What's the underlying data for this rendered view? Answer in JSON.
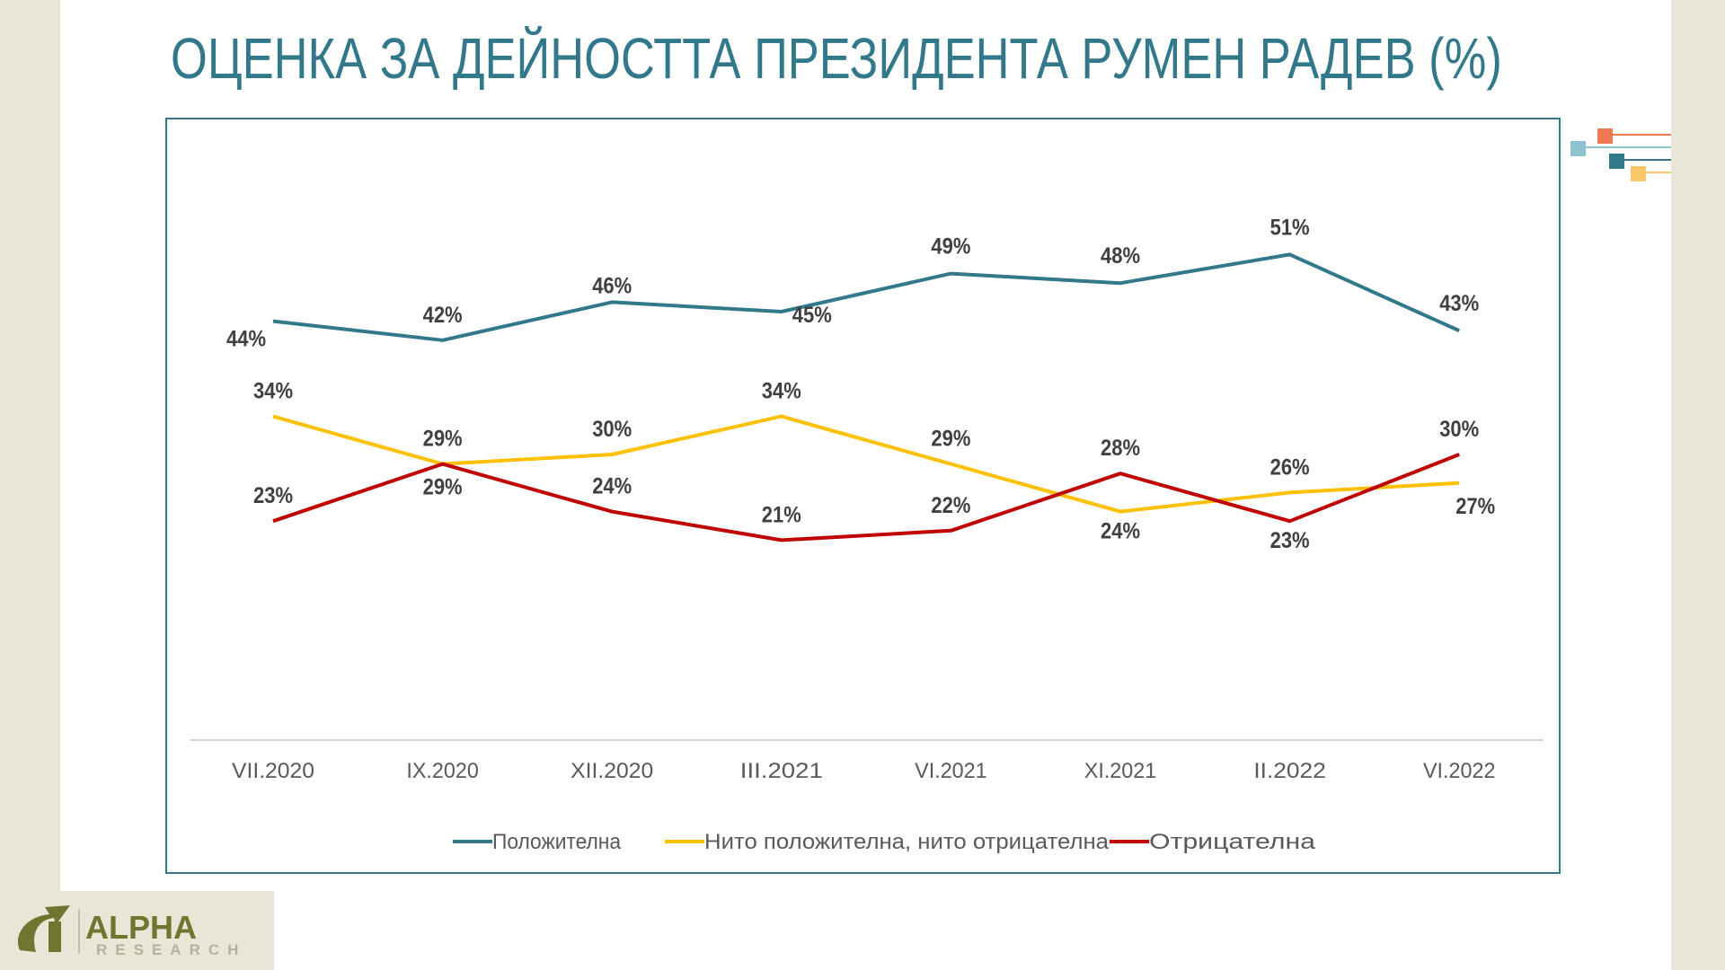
{
  "title": "ОЦЕНКА ЗА ДЕЙНОСТТА ПРЕЗИДЕНТА РУМЕН РАДЕВ (%)",
  "logo": {
    "name": "ALPHA",
    "sub": "RESEARCH"
  },
  "decor_colors": [
    "#F07855",
    "#8CC3CE",
    "#31788A",
    "#F7C76A"
  ],
  "chart_data": {
    "type": "line",
    "title": "ОЦЕНКА ЗА ДЕЙНОСТТА ПРЕЗИДЕНТА РУМЕН РАДЕВ (%)",
    "categories": [
      "VII.2020",
      "IX.2020",
      "XII.2020",
      "III.2021",
      "VI.2021",
      "XI.2021",
      "II.2022",
      "VI.2022"
    ],
    "ylim": [
      0,
      60
    ],
    "grid": false,
    "legend": "bottom",
    "series": [
      {
        "name": "Положителна",
        "color": "#31788A",
        "values": [
          44,
          42,
          46,
          45,
          49,
          48,
          51,
          43
        ],
        "labels": [
          "44%",
          "42%",
          "46%",
          "45%",
          "49%",
          "48%",
          "51%",
          "43%"
        ]
      },
      {
        "name": "Нито положителна, нито отрицателна",
        "color": "#FFC000",
        "values": [
          34,
          29,
          30,
          34,
          29,
          24,
          26,
          27
        ],
        "labels": [
          "34%",
          "29%",
          "30%",
          "34%",
          "29%",
          "24%",
          "26%",
          "27%"
        ]
      },
      {
        "name": "Отрицателна",
        "color": "#C00000",
        "values": [
          23,
          29,
          24,
          21,
          22,
          28,
          23,
          30
        ],
        "labels": [
          "23%",
          "29%",
          "24%",
          "21%",
          "22%",
          "28%",
          "23%",
          "30%"
        ]
      }
    ]
  }
}
